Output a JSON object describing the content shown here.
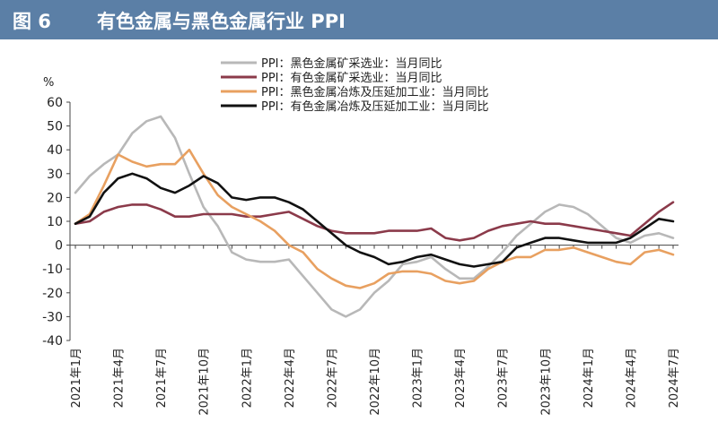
{
  "header": {
    "figure_number": "图 6",
    "title": "有色金属与黑色金属行业 PPI"
  },
  "chart_data": {
    "type": "line",
    "title": "有色金属与黑色金属行业 PPI",
    "ylabel": "%",
    "xlabel": "",
    "ylim": [
      -40,
      60
    ],
    "yticks": [
      60,
      50,
      40,
      30,
      20,
      10,
      0,
      -10,
      -20,
      -30,
      -40
    ],
    "x": [
      "2021-01",
      "2021-02",
      "2021-03",
      "2021-04",
      "2021-05",
      "2021-06",
      "2021-07",
      "2021-08",
      "2021-09",
      "2021-10",
      "2021-11",
      "2021-12",
      "2022-01",
      "2022-02",
      "2022-03",
      "2022-04",
      "2022-05",
      "2022-06",
      "2022-07",
      "2022-08",
      "2022-09",
      "2022-10",
      "2022-11",
      "2022-12",
      "2023-01",
      "2023-02",
      "2023-03",
      "2023-04",
      "2023-05",
      "2023-06",
      "2023-07",
      "2023-08",
      "2023-09",
      "2023-10",
      "2023-11",
      "2023-12",
      "2024-01",
      "2024-02",
      "2024-03",
      "2024-04",
      "2024-05",
      "2024-06",
      "2024-07"
    ],
    "xtick_labels": [
      "2021年1月",
      "2021年4月",
      "2021年7月",
      "2021年10月",
      "2022年1月",
      "2022年4月",
      "2022年7月",
      "2022年10月",
      "2023年1月",
      "2023年4月",
      "2023年7月",
      "2023年10月",
      "2024年1月",
      "2024年4月",
      "2024年7月"
    ],
    "legend_position": "top",
    "grid": false,
    "series": [
      {
        "name": "PPI：黑色金属矿采选业：当月同比",
        "color": "#b8b8b8",
        "values": [
          22,
          29,
          34,
          38,
          47,
          52,
          54,
          45,
          30,
          16,
          8,
          -3,
          -6,
          -7,
          -7,
          -6,
          -13,
          -20,
          -27,
          -30,
          -27,
          -20,
          -15,
          -8,
          -7,
          -5,
          -10,
          -14,
          -14,
          -9,
          -3,
          4,
          9,
          14,
          17,
          16,
          13,
          8,
          3,
          1,
          4,
          5,
          3
        ]
      },
      {
        "name": "PPI：有色金属矿采选业：当月同比",
        "color": "#8b3a4a",
        "values": [
          9,
          10,
          14,
          16,
          17,
          17,
          15,
          12,
          12,
          13,
          13,
          13,
          12,
          12,
          13,
          14,
          11,
          8,
          6,
          5,
          5,
          5,
          6,
          6,
          6,
          7,
          3,
          2,
          3,
          6,
          8,
          9,
          10,
          9,
          9,
          8,
          7,
          6,
          5,
          4,
          9,
          14,
          18
        ]
      },
      {
        "name": "PPI：黑色金属冶炼及压延加工业：当月同比",
        "color": "#e8a060",
        "values": [
          9,
          13,
          25,
          38,
          35,
          33,
          34,
          34,
          40,
          30,
          21,
          16,
          13,
          10,
          6,
          0,
          -3,
          -10,
          -14,
          -17,
          -18,
          -16,
          -12,
          -11,
          -11,
          -12,
          -15,
          -16,
          -15,
          -10,
          -7,
          -5,
          -5,
          -2,
          -2,
          -1,
          -3,
          -5,
          -7,
          -8,
          -3,
          -2,
          -4
        ]
      },
      {
        "name": "PPI：有色金属冶炼及压延加工业：当月同比",
        "color": "#111111",
        "values": [
          9,
          12,
          22,
          28,
          30,
          28,
          24,
          22,
          25,
          29,
          26,
          20,
          19,
          20,
          20,
          18,
          15,
          10,
          5,
          0,
          -3,
          -5,
          -8,
          -7,
          -5,
          -4,
          -6,
          -8,
          -9,
          -8,
          -7,
          -1,
          1,
          3,
          3,
          2,
          1,
          1,
          1,
          3,
          7,
          11,
          10
        ]
      }
    ]
  }
}
